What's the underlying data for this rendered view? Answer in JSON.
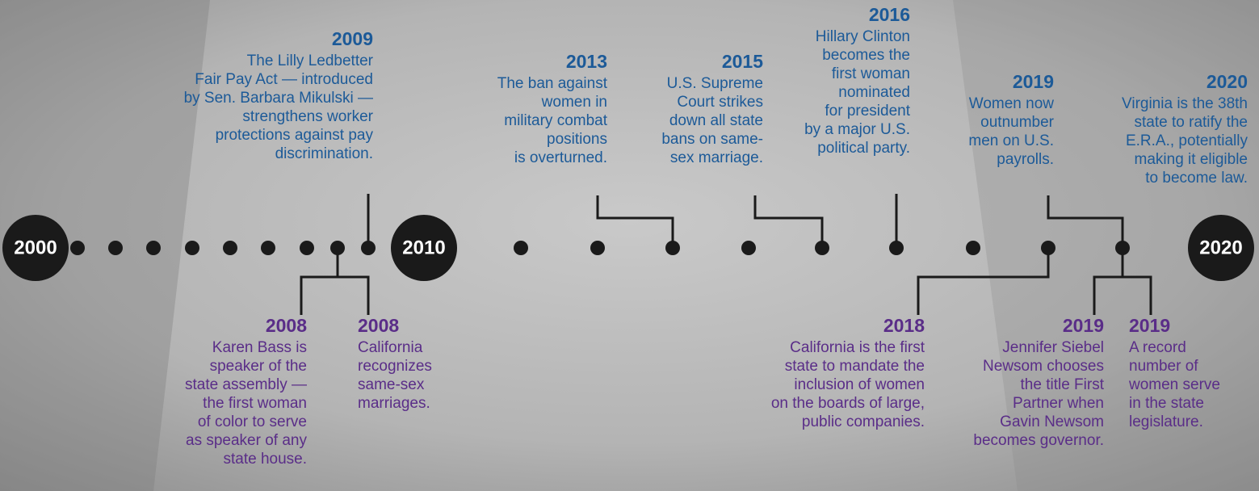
{
  "milestones": [
    {
      "label": "2000"
    },
    {
      "label": "2010"
    },
    {
      "label": "2020"
    }
  ],
  "events_above": [
    {
      "year": "2009",
      "lines": [
        "The Lilly Ledbetter",
        "Fair Pay Act — introduced",
        "by Sen. Barbara Mikulski —",
        "strengthens worker",
        "protections against pay",
        "discrimination."
      ]
    },
    {
      "year": "2013",
      "lines": [
        "The ban against",
        "women in",
        "military combat",
        "positions",
        "is overturned."
      ]
    },
    {
      "year": "2015",
      "lines": [
        "U.S. Supreme",
        "Court strikes",
        "down all state",
        "bans on same-",
        "sex marriage."
      ]
    },
    {
      "year": "2016",
      "lines": [
        "Hillary Clinton",
        "becomes the",
        "first woman",
        "nominated",
        "for president",
        "by a major U.S.",
        "political party."
      ]
    },
    {
      "year": "2019",
      "lines": [
        "Women now",
        "outnumber",
        "men on U.S.",
        "payrolls."
      ]
    },
    {
      "year": "2020",
      "lines": [
        "Virginia is the 38th",
        "state to ratify the",
        "E.R.A., potentially",
        "making it eligible",
        "to become law."
      ]
    }
  ],
  "events_below": [
    {
      "year": "2008",
      "lines": [
        "Karen Bass is",
        "speaker of the",
        "state assembly —",
        "the first woman",
        "of color to serve",
        "as speaker of any",
        "state house."
      ]
    },
    {
      "year": "2008",
      "lines": [
        "California",
        "recognizes",
        "same-sex",
        "marriages."
      ]
    },
    {
      "year": "2018",
      "lines": [
        "California is the first",
        "state to mandate the",
        "inclusion of women",
        "on the boards of large,",
        "public companies."
      ]
    },
    {
      "year": "2019",
      "lines": [
        "Jennifer Siebel",
        "Newsom chooses",
        "the title First",
        "Partner when",
        "Gavin Newsom",
        "becomes governor."
      ]
    },
    {
      "year": "2019",
      "lines": [
        "A record",
        "number of",
        "women serve",
        "in the state",
        "legislature."
      ]
    }
  ]
}
